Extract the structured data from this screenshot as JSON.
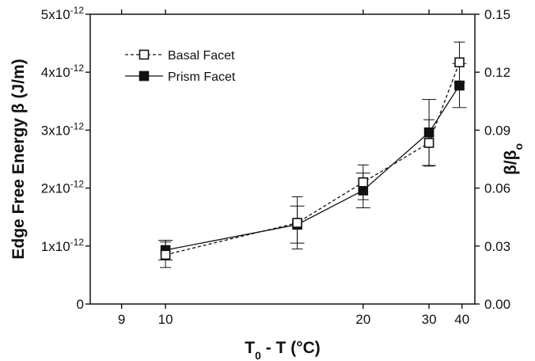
{
  "chart_data": {
    "type": "line",
    "xlabel": {
      "main": "T",
      "sub": "0",
      "rest": " - T (°C)"
    },
    "ylabel_left": "Edge Free Energy β (J/m)",
    "ylabel_right": {
      "main": "β/β",
      "sub": "o"
    },
    "x_scale": "reciprocal",
    "xlim": [
      8.4,
      46
    ],
    "ylim": [
      0,
      5e-12
    ],
    "ylim_right": [
      0,
      0.15
    ],
    "x_ticks": [
      {
        "value": 9,
        "label": "9"
      },
      {
        "value": 10,
        "label": "10"
      },
      {
        "value": 20,
        "label": "20"
      },
      {
        "value": 30,
        "label": "30"
      },
      {
        "value": 40,
        "label": "40"
      }
    ],
    "y_ticks_left": [
      {
        "value": 0,
        "base": "0",
        "exp": ""
      },
      {
        "value": 1e-12,
        "base": "1x10",
        "exp": "-12"
      },
      {
        "value": 2e-12,
        "base": "2x10",
        "exp": "-12"
      },
      {
        "value": 3e-12,
        "base": "3x10",
        "exp": "-12"
      },
      {
        "value": 4e-12,
        "base": "4x10",
        "exp": "-12"
      },
      {
        "value": 5e-12,
        "base": "5x10",
        "exp": "-12"
      }
    ],
    "y_ticks_right": [
      {
        "value": 0.0,
        "label": "0.00"
      },
      {
        "value": 0.03,
        "label": "0.03"
      },
      {
        "value": 0.06,
        "label": "0.06"
      },
      {
        "value": 0.09,
        "label": "0.09"
      },
      {
        "value": 0.12,
        "label": "0.12"
      },
      {
        "value": 0.15,
        "label": "0.15"
      }
    ],
    "series": [
      {
        "name": "Basal Facet",
        "marker": "open-square",
        "line": "dashed",
        "points": [
          {
            "x": 10,
            "y": 8.5e-13,
            "err": 2.2e-13
          },
          {
            "x": 15,
            "y": 1.4e-12,
            "err": 4.5e-13
          },
          {
            "x": 20,
            "y": 2.1e-12,
            "err": 3e-13
          },
          {
            "x": 30,
            "y": 2.78e-12,
            "err": 4e-13
          },
          {
            "x": 39,
            "y": 4.17e-12,
            "err": 3.5e-13
          }
        ]
      },
      {
        "name": "Prism Facet",
        "marker": "filled-square",
        "line": "solid",
        "points": [
          {
            "x": 10,
            "y": 9.3e-13,
            "err": 1.7e-13
          },
          {
            "x": 15,
            "y": 1.37e-12,
            "err": 3.2e-13
          },
          {
            "x": 20,
            "y": 1.96e-12,
            "err": 3e-13
          },
          {
            "x": 30,
            "y": 2.96e-12,
            "err": 5.7e-13
          },
          {
            "x": 39,
            "y": 3.77e-12,
            "err": 3.8e-13
          }
        ]
      }
    ],
    "legend": "top-left",
    "grid": false
  }
}
